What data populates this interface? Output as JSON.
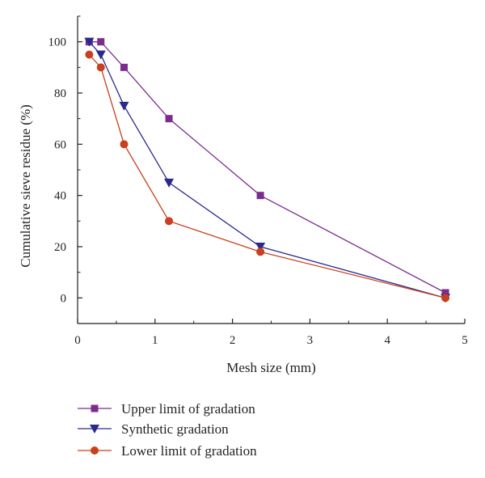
{
  "chart_data": {
    "type": "line",
    "title": "",
    "xlabel": "Mesh size (mm)",
    "ylabel": "Cumulative sieve residue (%)",
    "xlim": [
      0,
      5
    ],
    "ylim": [
      -10,
      110
    ],
    "xticks": [
      0,
      1,
      2,
      3,
      4,
      5
    ],
    "yticks": [
      0,
      20,
      40,
      60,
      80,
      100
    ],
    "grid": false,
    "legend_position": "bottom",
    "series": [
      {
        "name": "Upper limit of gradation",
        "color": "#7b2d8e",
        "marker": "square",
        "x": [
          0.15,
          0.3,
          0.6,
          1.18,
          2.36,
          4.75
        ],
        "y": [
          100,
          100,
          90,
          70,
          40,
          2
        ]
      },
      {
        "name": "Synthetic gradation",
        "color": "#2b2a8c",
        "marker": "triangle-down",
        "x": [
          0.15,
          0.3,
          0.6,
          1.18,
          2.36,
          4.75
        ],
        "y": [
          100,
          95,
          75,
          45,
          20,
          0
        ]
      },
      {
        "name": "Lower limit of gradation",
        "color": "#c8401e",
        "marker": "circle",
        "x": [
          0.15,
          0.3,
          0.6,
          1.18,
          2.36,
          4.75
        ],
        "y": [
          95,
          90,
          60,
          30,
          18,
          0
        ]
      }
    ]
  }
}
